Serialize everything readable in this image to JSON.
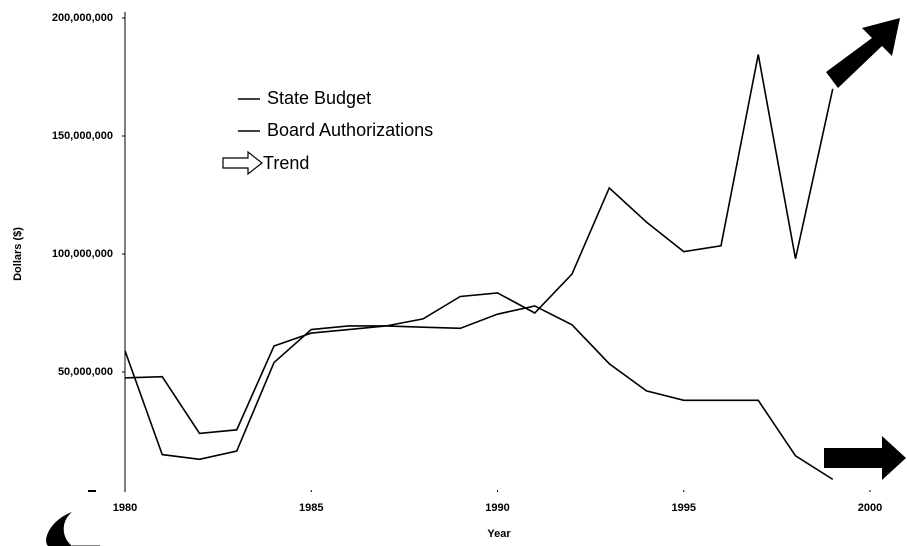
{
  "chart_data": {
    "type": "line",
    "x_label": "Year",
    "y_label": "Dollars ($)",
    "x": [
      1980,
      1981,
      1982,
      1983,
      1984,
      1985,
      1986,
      1987,
      1988,
      1989,
      1990,
      1991,
      1992,
      1993,
      1994,
      1995,
      1996,
      1997,
      1998,
      1999
    ],
    "series": [
      {
        "name": "State Budget",
        "color": "#000000",
        "values": [
          59000000,
          15000000,
          13000000,
          16500000,
          54000000,
          68000000,
          69500000,
          69500000,
          69000000,
          68500000,
          74500000,
          78000000,
          70000000,
          53500000,
          42000000,
          38000000,
          38000000,
          38000000,
          14500000,
          4500000
        ]
      },
      {
        "name": "Board Authorizations",
        "color": "#000000",
        "values": [
          47500000,
          48000000,
          24000000,
          25500000,
          61000000,
          66500000,
          68000000,
          69500000,
          72500000,
          82000000,
          83500000,
          75000000,
          91500000,
          128000000,
          113500000,
          101000000,
          103500000,
          184500000,
          98000000,
          170000000
        ]
      }
    ],
    "trend_label": "Trend",
    "xlim": [
      1980,
      2000
    ],
    "xticks": [
      1980,
      1985,
      1990,
      1995,
      2000
    ],
    "ylim": [
      0,
      200000000
    ],
    "yticks": [
      {
        "value": 50000000,
        "label": "50,000,000"
      },
      {
        "value": 100000000,
        "label": "100,000,000"
      },
      {
        "value": 150000000,
        "label": "150,000,000"
      },
      {
        "value": 200000000,
        "label": "200,000,000"
      }
    ],
    "grid": false
  }
}
